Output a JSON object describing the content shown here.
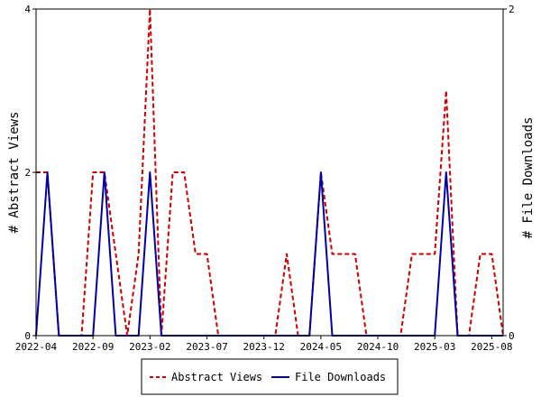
{
  "chart_data": {
    "type": "line",
    "x": [
      "2022-04",
      "2022-05",
      "2022-06",
      "2022-07",
      "2022-08",
      "2022-09",
      "2022-10",
      "2022-11",
      "2022-12",
      "2023-01",
      "2023-02",
      "2023-03",
      "2023-04",
      "2023-05",
      "2023-06",
      "2023-07",
      "2023-08",
      "2023-09",
      "2023-10",
      "2023-11",
      "2023-12",
      "2024-01",
      "2024-02",
      "2024-03",
      "2024-04",
      "2024-05",
      "2024-06",
      "2024-07",
      "2024-08",
      "2024-09",
      "2024-10",
      "2024-11",
      "2024-12",
      "2025-01",
      "2025-02",
      "2025-03",
      "2025-04",
      "2025-05",
      "2025-06",
      "2025-07",
      "2025-08",
      "2025-09"
    ],
    "x_tick_labels": [
      "2022-04",
      "2022-09",
      "2023-02",
      "2023-07",
      "2023-12",
      "2024-05",
      "2024-10",
      "2025-03",
      "2025-08"
    ],
    "series": [
      {
        "name": "Abstract Views",
        "axis": "left",
        "color": "#cc0000",
        "style": "dashed",
        "values": [
          2,
          2,
          0,
          0,
          0,
          2,
          2,
          1,
          0,
          1,
          4,
          0,
          2,
          2,
          1,
          1,
          0,
          0,
          0,
          0,
          0,
          0,
          1,
          0,
          0,
          2,
          1,
          1,
          1,
          0,
          0,
          0,
          0,
          1,
          1,
          1,
          3,
          0,
          0,
          1,
          1,
          0
        ]
      },
      {
        "name": "File Downloads",
        "axis": "right",
        "color": "#0000aa",
        "style": "solid",
        "values": [
          0,
          1,
          0,
          0,
          0,
          0,
          1,
          0,
          0,
          0,
          1,
          0,
          0,
          0,
          0,
          0,
          0,
          0,
          0,
          0,
          0,
          0,
          0,
          0,
          0,
          1,
          0,
          0,
          0,
          0,
          0,
          0,
          0,
          0,
          0,
          0,
          1,
          0,
          0,
          0,
          0,
          0
        ]
      }
    ],
    "ylabel_left": "# Abstract Views",
    "ylabel_right": "# File Downloads",
    "ylim_left": [
      0,
      4
    ],
    "ylim_right": [
      0,
      2
    ],
    "yticks_left": [
      "0",
      "2",
      "4"
    ],
    "yticks_right": [
      "0",
      "2"
    ],
    "grid": false,
    "legend_position": "bottom-center"
  }
}
